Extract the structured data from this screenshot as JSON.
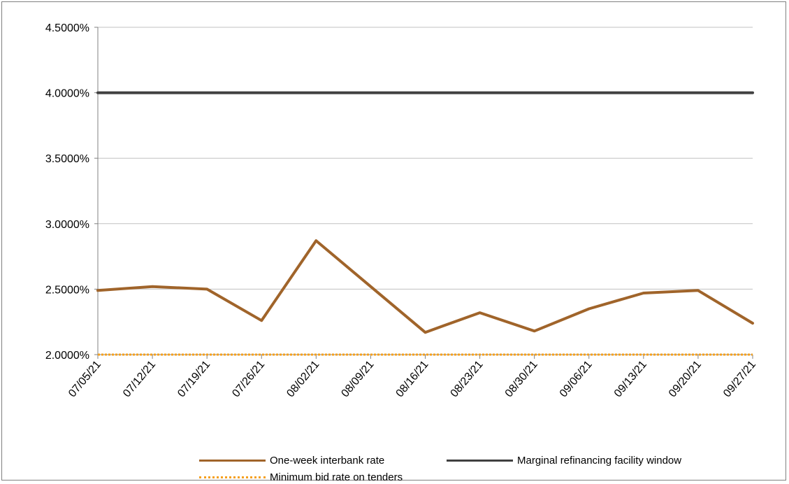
{
  "chart_data": {
    "type": "line",
    "title": "",
    "xlabel": "",
    "ylabel": "",
    "x": [
      "07/05/21",
      "07/12/21",
      "07/19/21",
      "07/26/21",
      "08/02/21",
      "08/09/21",
      "08/16/21",
      "08/23/21",
      "08/30/21",
      "09/06/21",
      "09/13/21",
      "09/20/21",
      "09/27/21"
    ],
    "ylim": [
      0.02,
      0.045
    ],
    "yticks": [
      "2.0000%",
      "2.5000%",
      "3.0000%",
      "3.5000%",
      "4.0000%",
      "4.5000%"
    ],
    "grid": true,
    "legend_position": "bottom",
    "series": [
      {
        "name": "One-week interbank rate",
        "color": "#a0642a",
        "style": "solid",
        "values": [
          0.0249,
          0.0252,
          0.025,
          0.0226,
          0.0287,
          0.0252,
          0.0217,
          0.0232,
          0.0218,
          0.0235,
          0.0247,
          0.0249,
          0.0224
        ]
      },
      {
        "name": "Marginal refinancing facility window",
        "color": "#404040",
        "style": "solid",
        "values": [
          0.04,
          0.04,
          0.04,
          0.04,
          0.04,
          0.04,
          0.04,
          0.04,
          0.04,
          0.04,
          0.04,
          0.04,
          0.04
        ]
      },
      {
        "name": "Minimum bid rate on tenders",
        "color": "#f5a01e",
        "style": "dotted",
        "values": [
          0.02,
          0.02,
          0.02,
          0.02,
          0.02,
          0.02,
          0.02,
          0.02,
          0.02,
          0.02,
          0.02,
          0.02,
          0.02
        ]
      }
    ]
  }
}
